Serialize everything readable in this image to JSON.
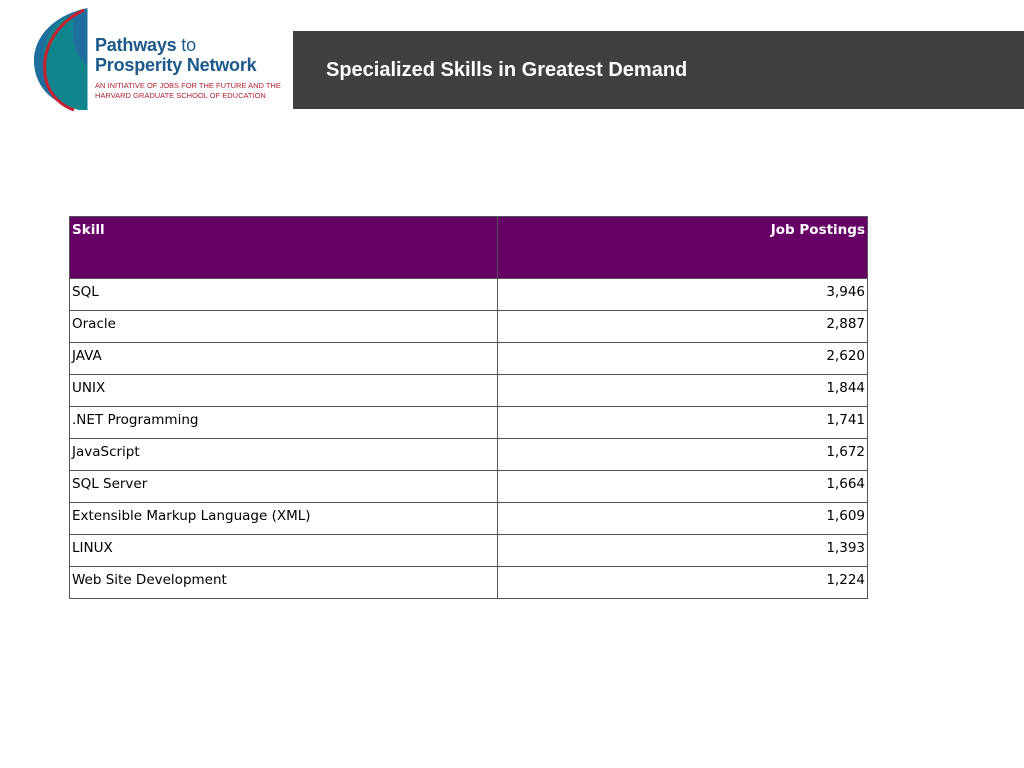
{
  "logo": {
    "line1_main": "Pathways",
    "line1_to": "to",
    "line2": "Prosperity Network",
    "subtitle": "AN INITIATIVE OF JOBS FOR THE FUTURE AND THE HARVARD GRADUATE SCHOOL OF EDUCATION"
  },
  "title": "Specialized Skills in Greatest Demand",
  "table": {
    "headers": [
      "Skill",
      "Job Postings"
    ],
    "rows": [
      {
        "skill": "SQL",
        "postings": "3,946"
      },
      {
        "skill": "Oracle",
        "postings": "2,887"
      },
      {
        "skill": "JAVA",
        "postings": "2,620"
      },
      {
        "skill": "UNIX",
        "postings": "1,844"
      },
      {
        "skill": ".NET Programming",
        "postings": "1,741"
      },
      {
        "skill": "JavaScript",
        "postings": "1,672"
      },
      {
        "skill": "SQL Server",
        "postings": "1,664"
      },
      {
        "skill": "Extensible Markup Language (XML)",
        "postings": "1,609"
      },
      {
        "skill": "LINUX",
        "postings": "1,393"
      },
      {
        "skill": "Web Site Development",
        "postings": "1,224"
      }
    ]
  },
  "colors": {
    "header_band": "#404040",
    "table_header": "#660066",
    "logo_blue": "#1a5a8a",
    "logo_red": "#b22234"
  }
}
